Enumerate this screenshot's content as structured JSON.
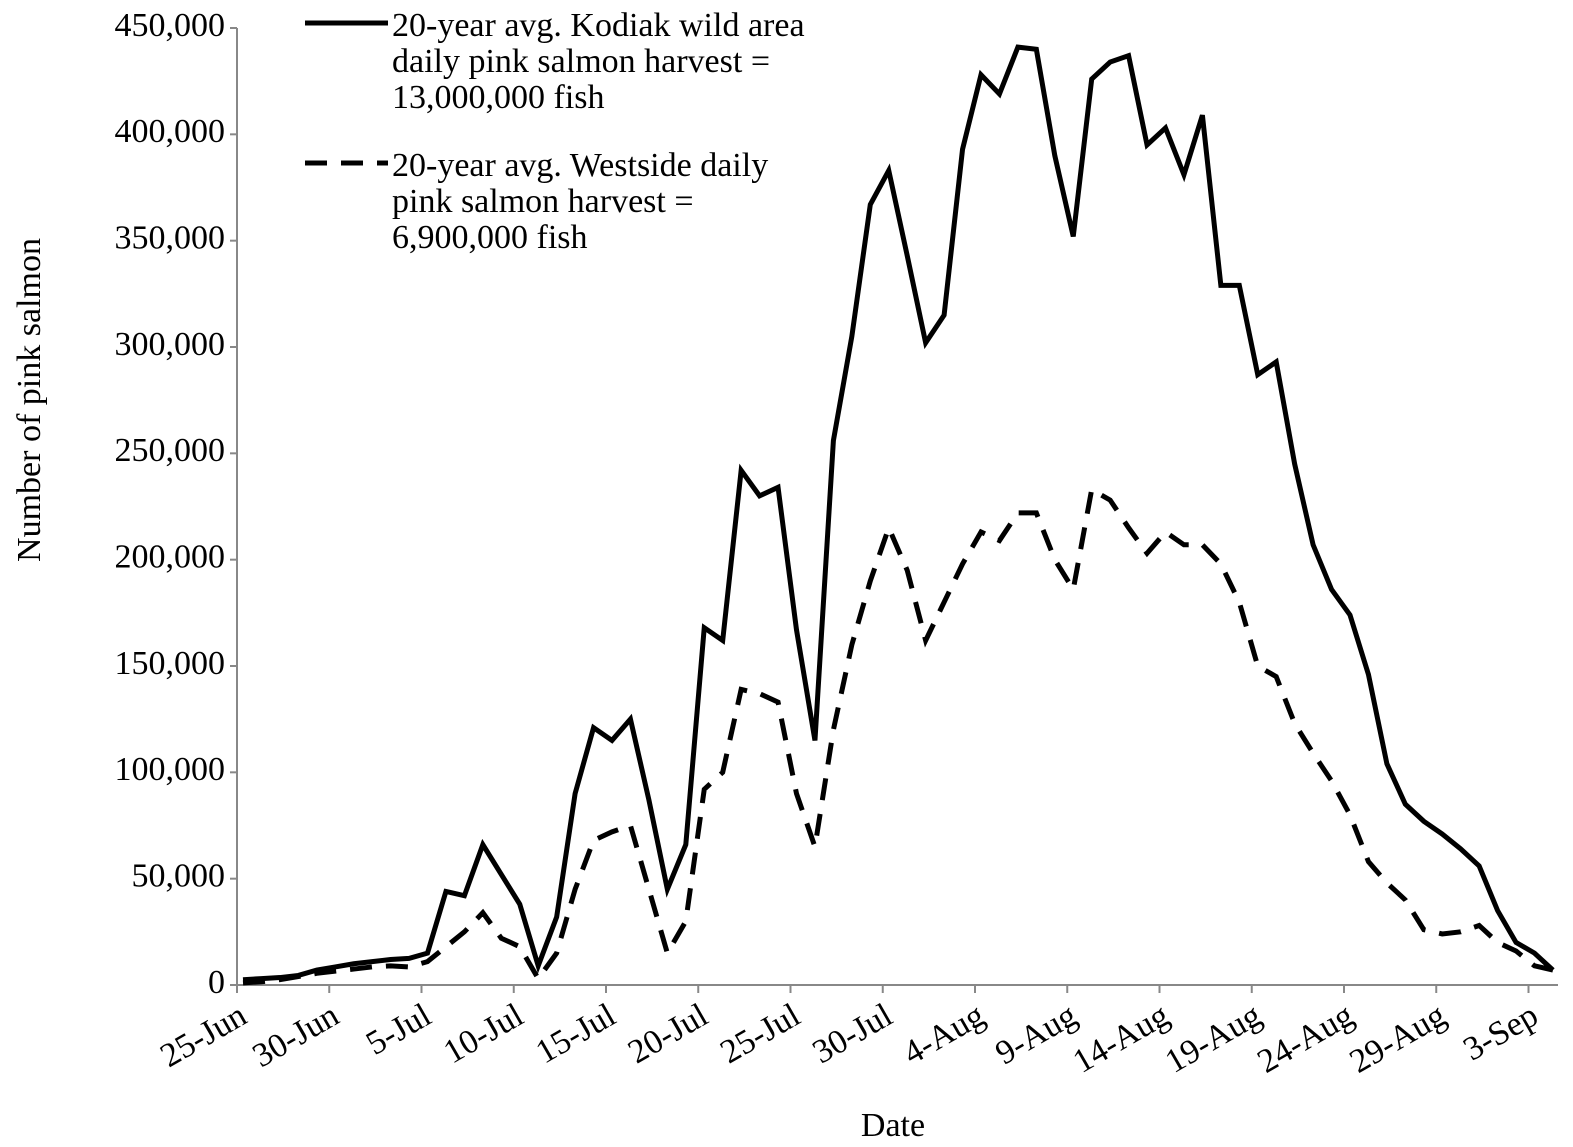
{
  "chart_data": {
    "type": "line",
    "x_label": "Date",
    "y_label": "Number of pink salmon",
    "categories": [
      "25-Jun",
      null,
      null,
      null,
      null,
      "30-Jun",
      null,
      null,
      null,
      null,
      "5-Jul",
      null,
      null,
      null,
      null,
      "10-Jul",
      null,
      null,
      null,
      null,
      "15-Jul",
      null,
      null,
      null,
      null,
      "20-Jul",
      null,
      null,
      null,
      null,
      "25-Jul",
      null,
      null,
      null,
      null,
      "30-Jul",
      null,
      null,
      null,
      null,
      "4-Aug",
      null,
      null,
      null,
      null,
      "9-Aug",
      null,
      null,
      null,
      null,
      "14-Aug",
      null,
      null,
      null,
      null,
      "19-Aug",
      null,
      null,
      null,
      null,
      "24-Aug",
      null,
      null,
      null,
      null,
      "29-Aug",
      null,
      null,
      null,
      null,
      "3-Sep",
      null
    ],
    "series": [
      {
        "name": "20-year avg. Kodiak wild area daily pink salmon harvest = 13,000,000 fish",
        "color": "#000000",
        "dash": "solid",
        "values": [
          2500,
          3000,
          3500,
          4500,
          7000,
          8500,
          10000,
          11000,
          12000,
          12500,
          15000,
          44000,
          42000,
          66000,
          52000,
          38000,
          9000,
          32000,
          90000,
          121000,
          115000,
          125000,
          87000,
          45000,
          66000,
          168000,
          162000,
          242000,
          230000,
          234000,
          167000,
          115000,
          256000,
          305000,
          367000,
          383000,
          343000,
          302000,
          315000,
          393000,
          428000,
          419000,
          441000,
          440000,
          390000,
          352000,
          426000,
          434000,
          437000,
          395000,
          403000,
          381000,
          409000,
          329000,
          329000,
          287000,
          293000,
          245000,
          207000,
          186000,
          174000,
          146000,
          104000,
          85000,
          77000,
          71000,
          64000,
          56000,
          35000,
          20000,
          15000,
          7000
        ]
      },
      {
        "name": "20-year avg. Westside daily pink salmon harvest = 6,900,000 fish",
        "color": "#000000",
        "dash": "dashed",
        "values": [
          1000,
          1500,
          2500,
          4000,
          5500,
          6500,
          7500,
          8500,
          9000,
          8500,
          11000,
          18000,
          25000,
          34000,
          22000,
          18000,
          3000,
          15000,
          45000,
          68000,
          72000,
          75000,
          45000,
          15000,
          30000,
          92000,
          100000,
          139000,
          137000,
          133000,
          90000,
          65000,
          120000,
          160000,
          190000,
          215000,
          195000,
          162000,
          180000,
          198000,
          213000,
          209000,
          222000,
          222000,
          200000,
          186000,
          233000,
          228000,
          215000,
          203000,
          213000,
          207000,
          207000,
          198000,
          180000,
          150000,
          145000,
          123000,
          109000,
          96000,
          80000,
          58000,
          48000,
          40000,
          26000,
          24000,
          25000,
          28000,
          20000,
          16000,
          9000,
          7000
        ]
      }
    ],
    "ylim": [
      0,
      450000
    ],
    "yticks": [
      0,
      {
        "value": 50000,
        "label": "50,000"
      },
      {
        "value": 100000,
        "label": "100,000"
      },
      {
        "value": 150000,
        "label": "150,000"
      },
      {
        "value": 200000,
        "label": "200,000"
      },
      {
        "value": 250000,
        "label": "250,000"
      },
      {
        "value": 300000,
        "label": "300,000"
      },
      {
        "value": 350000,
        "label": "350,000"
      },
      {
        "value": 400000,
        "label": "400,000"
      },
      {
        "value": 450000,
        "label": "450,000"
      }
    ],
    "grid": false,
    "legend": "top-left"
  }
}
